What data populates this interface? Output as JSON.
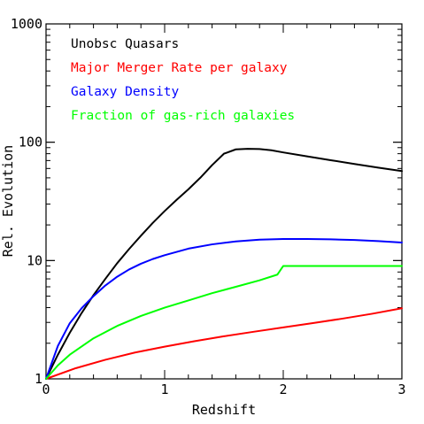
{
  "chart_data": {
    "type": "line",
    "xlabel": "Redshift",
    "ylabel": "Rel. Evolution",
    "xlim": [
      0,
      3
    ],
    "ylim": [
      1,
      1000
    ],
    "yscale": "log",
    "grid": false,
    "legend_position": "top-left",
    "x_ticks": [
      0,
      1,
      2,
      3
    ],
    "x_tick_labels": [
      "0",
      "1",
      "2",
      "3"
    ],
    "y_ticks": [
      1,
      10,
      100,
      1000
    ],
    "y_tick_labels": [
      "1",
      "10",
      "100",
      "1000"
    ],
    "series": [
      {
        "name": "Unobsc Quasars",
        "color": "#000000",
        "x": [
          0,
          0.1,
          0.2,
          0.3,
          0.4,
          0.5,
          0.6,
          0.7,
          0.8,
          0.9,
          1.0,
          1.1,
          1.2,
          1.3,
          1.4,
          1.5,
          1.6,
          1.7,
          1.8,
          1.9,
          2.0,
          2.2,
          2.4,
          2.6,
          2.8,
          3.0
        ],
        "y": [
          1,
          1.6,
          2.45,
          3.6,
          5.1,
          7.0,
          9.5,
          12.5,
          16.2,
          20.8,
          26.2,
          32.5,
          40.0,
          50.0,
          64.0,
          80.0,
          87.0,
          88.0,
          87.5,
          85.5,
          82.0,
          76.0,
          70.5,
          65.5,
          61.0,
          57.0
        ]
      },
      {
        "name": "Major Merger Rate per galaxy",
        "color": "#ff0000",
        "x": [
          0,
          0.25,
          0.5,
          0.75,
          1.0,
          1.25,
          1.5,
          1.75,
          2.0,
          2.25,
          2.5,
          2.75,
          3.0
        ],
        "y": [
          1,
          1.23,
          1.45,
          1.67,
          1.87,
          2.08,
          2.29,
          2.5,
          2.72,
          2.96,
          3.23,
          3.55,
          3.95
        ]
      },
      {
        "name": "Galaxy Density",
        "color": "#0000ff",
        "x": [
          0,
          0.1,
          0.2,
          0.3,
          0.4,
          0.5,
          0.6,
          0.7,
          0.8,
          0.9,
          1.0,
          1.2,
          1.4,
          1.6,
          1.8,
          2.0,
          2.2,
          2.4,
          2.6,
          2.8,
          3.0
        ],
        "y": [
          1,
          1.9,
          2.95,
          3.95,
          5.0,
          6.15,
          7.3,
          8.4,
          9.4,
          10.3,
          11.1,
          12.6,
          13.7,
          14.5,
          15.0,
          15.2,
          15.2,
          15.1,
          14.9,
          14.6,
          14.2
        ]
      },
      {
        "name": "Fraction of gas-rich galaxies",
        "color": "#00ff00",
        "x": [
          0,
          0.1,
          0.2,
          0.4,
          0.6,
          0.8,
          1.0,
          1.2,
          1.4,
          1.6,
          1.8,
          1.95,
          2.0,
          2.2,
          2.4,
          2.6,
          2.8,
          3.0
        ],
        "y": [
          1,
          1.3,
          1.6,
          2.2,
          2.8,
          3.4,
          4.0,
          4.6,
          5.3,
          6.0,
          6.8,
          7.6,
          9.0,
          9.0,
          9.0,
          9.0,
          9.0,
          9.0
        ]
      }
    ]
  }
}
